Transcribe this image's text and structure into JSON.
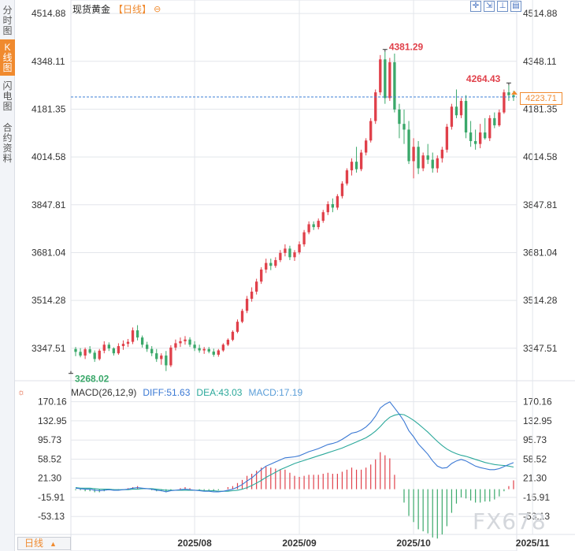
{
  "sidebar": {
    "tabs": [
      {
        "label": "分时图",
        "active": false
      },
      {
        "label": "K线图",
        "active": true
      },
      {
        "label": "闪电图",
        "active": false
      },
      {
        "label": "合约资料",
        "active": false
      }
    ]
  },
  "header": {
    "symbol": "现货黄金",
    "period": "日线",
    "bracket_open": "【",
    "bracket_close": "】",
    "settings_icon": "circle-minus-icon"
  },
  "toolbar": {
    "buttons": [
      {
        "name": "crosshair-tool-button",
        "glyph": "✛"
      },
      {
        "name": "zoom-fit-button",
        "glyph": "⇲"
      },
      {
        "name": "indicator-button",
        "glyph": "⊥"
      },
      {
        "name": "layout-button",
        "glyph": "▤"
      }
    ]
  },
  "price_chart": {
    "type": "candlestick",
    "y_ticks": [
      "4514.88",
      "4348.11",
      "4181.35",
      "4014.58",
      "3847.81",
      "3681.04",
      "3514.28",
      "3347.51"
    ],
    "y_tick_values": [
      4514.88,
      4348.11,
      4181.35,
      4014.58,
      3847.81,
      3681.04,
      3514.28,
      3347.51
    ],
    "ylim": [
      3248,
      4540
    ],
    "last_price": "4223.71",
    "last_price_value": 4223.71,
    "high_marker": {
      "label": "4381.29",
      "value": 4381.29
    },
    "recent_high_marker": {
      "label": "4264.43",
      "value": 4264.43
    },
    "low_marker": {
      "label": "3268.02",
      "value": 3268.02
    },
    "colors": {
      "up": "#e0404a",
      "down": "#3aa86a",
      "grid": "#e3e6eb",
      "last_line": "#3d7fd4",
      "axis_text": "#333333"
    }
  },
  "macd": {
    "title": "MACD(26,12,9)",
    "diff_label": "DIFF:51.63",
    "dea_label": "DEA:43.03",
    "macd_label": "MACD:17.19",
    "icon": "sun-settings-icon",
    "y_ticks": [
      "170.16",
      "132.95",
      "95.73",
      "58.52",
      "21.30",
      "-15.91",
      "-53.13"
    ],
    "y_tick_values": [
      170.16,
      132.95,
      95.73,
      58.52,
      21.3,
      -15.91,
      -53.13
    ],
    "ylim": [
      -85,
      185
    ],
    "colors": {
      "diff": "#3a78d4",
      "dea": "#2aa89a",
      "hist_up": "#e0404a",
      "hist_down": "#3aa86a"
    }
  },
  "x_axis": {
    "labels": [
      "2025/08",
      "2025/09",
      "2025/10",
      "2025/11"
    ]
  },
  "bottom": {
    "period_label": "日线",
    "caret": "▲"
  },
  "watermark": "FX678",
  "chart_data": {
    "type": "candlestick",
    "title": "现货黄金 日线",
    "xlabel": "",
    "ylabel": "",
    "ylim": [
      3248,
      4540
    ],
    "x_ticks": [
      "2025/08",
      "2025/09",
      "2025/10",
      "2025/11"
    ],
    "x_tick_index": [
      25,
      47,
      71,
      96
    ],
    "series": [
      {
        "name": "candles",
        "ohlc": [
          [
            3345,
            3352,
            3320,
            3335
          ],
          [
            3335,
            3348,
            3316,
            3322
          ],
          [
            3322,
            3350,
            3310,
            3344
          ],
          [
            3344,
            3355,
            3328,
            3332
          ],
          [
            3332,
            3340,
            3300,
            3310
          ],
          [
            3310,
            3345,
            3305,
            3339
          ],
          [
            3339,
            3372,
            3330,
            3360
          ],
          [
            3360,
            3368,
            3338,
            3347
          ],
          [
            3347,
            3351,
            3322,
            3330
          ],
          [
            3330,
            3365,
            3325,
            3355
          ],
          [
            3355,
            3375,
            3342,
            3363
          ],
          [
            3363,
            3380,
            3352,
            3370
          ],
          [
            3370,
            3420,
            3362,
            3410
          ],
          [
            3410,
            3428,
            3375,
            3385
          ],
          [
            3385,
            3392,
            3350,
            3360
          ],
          [
            3360,
            3370,
            3335,
            3345
          ],
          [
            3345,
            3355,
            3320,
            3330
          ],
          [
            3330,
            3345,
            3300,
            3310
          ],
          [
            3310,
            3330,
            3290,
            3322
          ],
          [
            3322,
            3338,
            3268,
            3288
          ],
          [
            3288,
            3358,
            3282,
            3350
          ],
          [
            3350,
            3378,
            3340,
            3365
          ],
          [
            3365,
            3385,
            3352,
            3372
          ],
          [
            3372,
            3390,
            3360,
            3378
          ],
          [
            3378,
            3386,
            3352,
            3360
          ],
          [
            3360,
            3372,
            3338,
            3348
          ],
          [
            3348,
            3360,
            3332,
            3340
          ],
          [
            3340,
            3352,
            3328,
            3345
          ],
          [
            3345,
            3352,
            3330,
            3336
          ],
          [
            3336,
            3346,
            3318,
            3325
          ],
          [
            3325,
            3345,
            3318,
            3340
          ],
          [
            3340,
            3365,
            3335,
            3360
          ],
          [
            3360,
            3382,
            3355,
            3377
          ],
          [
            3377,
            3410,
            3372,
            3405
          ],
          [
            3405,
            3448,
            3400,
            3440
          ],
          [
            3440,
            3485,
            3435,
            3478
          ],
          [
            3478,
            3530,
            3470,
            3520
          ],
          [
            3520,
            3560,
            3510,
            3545
          ],
          [
            3545,
            3590,
            3535,
            3580
          ],
          [
            3580,
            3630,
            3572,
            3622
          ],
          [
            3622,
            3660,
            3610,
            3645
          ],
          [
            3645,
            3660,
            3620,
            3635
          ],
          [
            3635,
            3665,
            3628,
            3655
          ],
          [
            3655,
            3690,
            3648,
            3680
          ],
          [
            3680,
            3710,
            3668,
            3695
          ],
          [
            3695,
            3705,
            3655,
            3665
          ],
          [
            3665,
            3690,
            3652,
            3682
          ],
          [
            3682,
            3720,
            3675,
            3710
          ],
          [
            3710,
            3760,
            3702,
            3752
          ],
          [
            3752,
            3790,
            3745,
            3780
          ],
          [
            3780,
            3790,
            3760,
            3770
          ],
          [
            3770,
            3800,
            3762,
            3792
          ],
          [
            3792,
            3830,
            3785,
            3822
          ],
          [
            3822,
            3860,
            3812,
            3850
          ],
          [
            3850,
            3870,
            3822,
            3838
          ],
          [
            3838,
            3885,
            3830,
            3878
          ],
          [
            3878,
            3930,
            3870,
            3922
          ],
          [
            3922,
            3975,
            3915,
            3968
          ],
          [
            3968,
            4010,
            3950,
            3998
          ],
          [
            3998,
            4050,
            3960,
            3972
          ],
          [
            3972,
            4040,
            3965,
            4030
          ],
          [
            4030,
            4080,
            4020,
            4072
          ],
          [
            4072,
            4150,
            4065,
            4140
          ],
          [
            4140,
            4250,
            4130,
            4240
          ],
          [
            4240,
            4370,
            4230,
            4355
          ],
          [
            4355,
            4381.29,
            4200,
            4220
          ],
          [
            4220,
            4360,
            4210,
            4345
          ],
          [
            4345,
            4375,
            4170,
            4180
          ],
          [
            4180,
            4200,
            4080,
            4130
          ],
          [
            4130,
            4180,
            4060,
            4110
          ],
          [
            4110,
            4140,
            3990,
            4000
          ],
          [
            4000,
            4080,
            3940,
            4050
          ],
          [
            4050,
            4070,
            3955,
            3975
          ],
          [
            3975,
            4030,
            3965,
            4020
          ],
          [
            4020,
            4060,
            3990,
            4005
          ],
          [
            4005,
            4030,
            3960,
            3975
          ],
          [
            3975,
            4020,
            3960,
            4010
          ],
          [
            4010,
            4050,
            3995,
            4040
          ],
          [
            4040,
            4130,
            4030,
            4120
          ],
          [
            4120,
            4200,
            4110,
            4190
          ],
          [
            4190,
            4250,
            4150,
            4160
          ],
          [
            4160,
            4220,
            4150,
            4210
          ],
          [
            4210,
            4230,
            4080,
            4100
          ],
          [
            4100,
            4140,
            4050,
            4070
          ],
          [
            4070,
            4110,
            4040,
            4060
          ],
          [
            4060,
            4130,
            4045,
            4100
          ],
          [
            4100,
            4150,
            4075,
            4080
          ],
          [
            4080,
            4160,
            4070,
            4150
          ],
          [
            4150,
            4170,
            4115,
            4125
          ],
          [
            4125,
            4180,
            4120,
            4170
          ],
          [
            4170,
            4250,
            4165,
            4240
          ],
          [
            4240,
            4264.43,
            4210,
            4230
          ],
          [
            4230,
            4245,
            4210,
            4223.71
          ]
        ]
      },
      {
        "name": "DIFF",
        "values": [
          2,
          1,
          0,
          0,
          -2,
          -3,
          -2,
          -1,
          -2,
          -2,
          -1,
          0,
          2,
          3,
          2,
          1,
          0,
          -2,
          -3,
          -5,
          -3,
          -2,
          -1,
          0,
          -1,
          -2,
          -3,
          -4,
          -4,
          -5,
          -5,
          -4,
          -2,
          0,
          4,
          9,
          16,
          22,
          30,
          38,
          45,
          49,
          53,
          57,
          61,
          62,
          63,
          65,
          69,
          73,
          76,
          79,
          83,
          87,
          89,
          92,
          97,
          103,
          109,
          111,
          115,
          121,
          130,
          142,
          158,
          165,
          170,
          158,
          146,
          132,
          114,
          102,
          88,
          78,
          68,
          55,
          45,
          41,
          42,
          50,
          55,
          58,
          55,
          50,
          45,
          42,
          40,
          38,
          38,
          40,
          44,
          48,
          51.63
        ]
      },
      {
        "name": "DEA",
        "values": [
          3,
          2,
          2,
          2,
          1,
          0,
          0,
          0,
          -1,
          -1,
          -1,
          -1,
          0,
          0,
          1,
          1,
          1,
          0,
          -1,
          -2,
          -2,
          -2,
          -2,
          -2,
          -2,
          -2,
          -2,
          -3,
          -3,
          -3,
          -4,
          -4,
          -4,
          -3,
          -2,
          0,
          3,
          7,
          12,
          17,
          23,
          28,
          33,
          38,
          42,
          46,
          50,
          53,
          56,
          59,
          62,
          65,
          68,
          71,
          74,
          77,
          80,
          84,
          88,
          92,
          96,
          100,
          106,
          113,
          122,
          132,
          140,
          144,
          146,
          145,
          140,
          134,
          127,
          119,
          111,
          102,
          93,
          85,
          78,
          73,
          69,
          66,
          64,
          61,
          58,
          55,
          52,
          50,
          48,
          47,
          46,
          45,
          43.03
        ]
      },
      {
        "name": "MACD",
        "values": [
          -2,
          -2,
          -4,
          -4,
          -6,
          -6,
          -4,
          -2,
          -2,
          -2,
          0,
          2,
          4,
          6,
          2,
          0,
          -2,
          -4,
          -4,
          -6,
          -2,
          0,
          2,
          4,
          2,
          0,
          -2,
          -2,
          -2,
          -4,
          -2,
          0,
          4,
          6,
          12,
          18,
          26,
          30,
          36,
          42,
          44,
          42,
          40,
          38,
          38,
          32,
          26,
          24,
          26,
          28,
          28,
          28,
          30,
          32,
          30,
          30,
          34,
          38,
          42,
          38,
          38,
          42,
          48,
          58,
          72,
          66,
          60,
          28,
          0,
          -26,
          -52,
          -64,
          -78,
          -82,
          -86,
          -94,
          -96,
          -88,
          -72,
          -46,
          -28,
          -16,
          -18,
          -22,
          -26,
          -26,
          -24,
          -24,
          -20,
          -14,
          -4,
          6,
          17.19
        ]
      }
    ]
  }
}
